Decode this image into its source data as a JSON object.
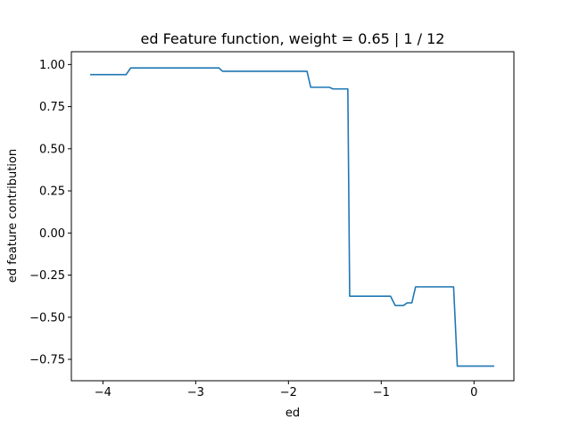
{
  "chart_data": {
    "type": "line",
    "title": "ed Feature function, weight = 0.65 | 1 / 12",
    "xlabel": "ed",
    "ylabel": "ed feature contribution",
    "xlim": [
      -4.34,
      0.43
    ],
    "ylim": [
      -0.877,
      1.076
    ],
    "xticks": [
      -4,
      -3,
      -2,
      -1,
      0
    ],
    "xtick_labels": [
      "−4",
      "−3",
      "−2",
      "−1",
      "0"
    ],
    "yticks": [
      -0.75,
      -0.5,
      -0.25,
      0.0,
      0.25,
      0.5,
      0.75,
      1.0
    ],
    "ytick_labels": [
      "−0.75",
      "−0.50",
      "−0.25",
      "0.00",
      "0.25",
      "0.50",
      "0.75",
      "1.00"
    ],
    "grid": false,
    "legend": "none",
    "series_color": "#1f77b4",
    "series": [
      {
        "x": [
          -4.13,
          -3.75,
          -3.7,
          -2.75,
          -2.71,
          -1.8,
          -1.76,
          -1.56,
          -1.52,
          -1.38,
          -1.36,
          -1.34,
          -0.9,
          -0.85,
          -0.76,
          -0.72,
          -0.67,
          -0.63,
          -0.22,
          -0.18,
          0.21
        ],
        "y": [
          0.94,
          0.94,
          0.98,
          0.98,
          0.96,
          0.96,
          0.865,
          0.865,
          0.855,
          0.855,
          0.855,
          -0.375,
          -0.375,
          -0.43,
          -0.43,
          -0.415,
          -0.415,
          -0.32,
          -0.32,
          -0.79,
          -0.79
        ]
      }
    ]
  }
}
